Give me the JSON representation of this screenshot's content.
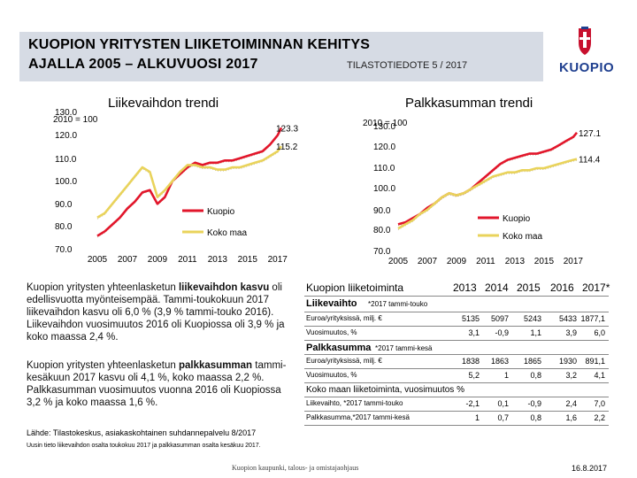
{
  "header": {
    "title_line1": "KUOPION YRITYSTEN LIIKETOIMINNAN KEHITYS",
    "title_line2": "AJALLA 2005 – ALKUVUOSI 2017",
    "subtitle": "TILASTOTIEDOTE 5 / 2017",
    "logo_text": "KUOPIO"
  },
  "charts": [
    {
      "title": "Liikevaihdon trendi",
      "index_label": "2010 = 100",
      "y_ticks": [
        "130.0",
        "120.0",
        "110.0",
        "100.0",
        "90.0",
        "80.0",
        "70.0"
      ],
      "x_ticks": [
        "2005",
        "2007",
        "2009",
        "2011",
        "2013",
        "2015",
        "2017"
      ],
      "end_labels": [
        "123.3",
        "115.2"
      ],
      "legend": [
        "Kuopio",
        "Koko maa"
      ]
    },
    {
      "title": "Palkkasumman trendi",
      "index_label": "2010 = 100",
      "y_ticks": [
        "130.0",
        "120.0",
        "110.0",
        "100.0",
        "90.0",
        "80.0",
        "70.0"
      ],
      "x_ticks": [
        "2005",
        "2007",
        "2009",
        "2011",
        "2013",
        "2015",
        "2017"
      ],
      "end_labels": [
        "127.1",
        "114.4"
      ],
      "legend": [
        "Kuopio",
        "Koko maa"
      ]
    }
  ],
  "chart_data": [
    {
      "type": "line",
      "title": "Liikevaihdon trendi",
      "ylabel": "2010 = 100",
      "ylim": [
        70,
        130
      ],
      "xlim": [
        2005,
        2017.25
      ],
      "series": [
        {
          "name": "Kuopio",
          "color": "#e2162b",
          "x": [
            2005,
            2005.5,
            2006,
            2006.5,
            2007,
            2007.5,
            2008,
            2008.5,
            2009,
            2009.5,
            2010,
            2010.5,
            2011,
            2011.5,
            2012,
            2012.5,
            2013,
            2013.5,
            2014,
            2014.5,
            2015,
            2015.5,
            2016,
            2016.5,
            2017,
            2017.25
          ],
          "y": [
            76,
            78,
            81,
            84,
            88,
            91,
            95,
            96,
            90,
            93,
            100,
            103,
            106,
            108,
            107,
            108,
            108,
            109,
            109,
            110,
            111,
            112,
            113,
            116,
            120,
            123.3
          ]
        },
        {
          "name": "Koko maa",
          "color": "#e9d35b",
          "x": [
            2005,
            2005.5,
            2006,
            2006.5,
            2007,
            2007.5,
            2008,
            2008.5,
            2009,
            2009.5,
            2010,
            2010.5,
            2011,
            2011.5,
            2012,
            2012.5,
            2013,
            2013.5,
            2014,
            2014.5,
            2015,
            2015.5,
            2016,
            2016.5,
            2017,
            2017.25
          ],
          "y": [
            84,
            86,
            90,
            94,
            98,
            102,
            106,
            104,
            93,
            96,
            100,
            104,
            107,
            107,
            106,
            106,
            105,
            105,
            106,
            106,
            107,
            108,
            109,
            111,
            113,
            115.2
          ]
        }
      ]
    },
    {
      "type": "line",
      "title": "Palkkasumman trendi",
      "ylabel": "2010 = 100",
      "ylim": [
        70,
        130
      ],
      "xlim": [
        2005,
        2017.25
      ],
      "series": [
        {
          "name": "Kuopio",
          "color": "#e2162b",
          "x": [
            2005,
            2005.5,
            2006,
            2006.5,
            2007,
            2007.5,
            2008,
            2008.5,
            2009,
            2009.5,
            2010,
            2010.5,
            2011,
            2011.5,
            2012,
            2012.5,
            2013,
            2013.5,
            2014,
            2014.5,
            2015,
            2015.5,
            2016,
            2016.5,
            2017,
            2017.25
          ],
          "y": [
            83,
            84,
            86,
            88,
            91,
            93,
            96,
            98,
            97,
            98,
            100,
            103,
            106,
            109,
            112,
            114,
            115,
            116,
            117,
            117,
            118,
            119,
            121,
            123,
            125,
            127.1
          ]
        },
        {
          "name": "Koko maa",
          "color": "#e9d35b",
          "x": [
            2005,
            2005.5,
            2006,
            2006.5,
            2007,
            2007.5,
            2008,
            2008.5,
            2009,
            2009.5,
            2010,
            2010.5,
            2011,
            2011.5,
            2012,
            2012.5,
            2013,
            2013.5,
            2014,
            2014.5,
            2015,
            2015.5,
            2016,
            2016.5,
            2017,
            2017.25
          ],
          "y": [
            81,
            83,
            85,
            88,
            90,
            93,
            96,
            98,
            97,
            98,
            100,
            102,
            104,
            106,
            107,
            108,
            108,
            109,
            109,
            110,
            110,
            111,
            112,
            113,
            114,
            114.4
          ]
        }
      ]
    }
  ],
  "paragraphs": {
    "p1_a": "Kuopion yritysten yhteenlasketun ",
    "p1_bold": "liikevaihdon kasvu",
    "p1_b": " oli edellisvuotta myönteisempää. Tammi-toukokuun 2017 liikevaihdon kasvu oli 6,0 % (3,9 % tammi-touko 2016). Liikevaihdon vuosimuutos 2016 oli Kuopiossa oli 3,9 % ja koko maassa 2,4 %.",
    "p2_a": "Kuopion yritysten yhteenlasketun ",
    "p2_bold": "palkkasumman",
    "p2_b": " tammi-kesäkuun 2017 kasvu oli 4,1 %, koko maassa 2,2 %. Palkkasumman vuosimuutos vuonna 2016 oli Kuopiossa 3,2 % ja koko maassa 1,6 %."
  },
  "table": {
    "header": {
      "label": "Kuopion liiketoiminta",
      "years": [
        "2013",
        "2014",
        "2015",
        "2016",
        "2017*"
      ]
    },
    "section1": {
      "bold": "Liikevaihto",
      "note": " *2017 tammi-touko"
    },
    "rows1": [
      {
        "label": "Euroa/yrityksissä, milj. €",
        "values": [
          "5135",
          "5097",
          "5243",
          "5433",
          "1877,1"
        ]
      },
      {
        "label": "Vuosimuutos, %",
        "values": [
          "3,1",
          "-0,9",
          "1,1",
          "3,9",
          "6,0"
        ]
      }
    ],
    "section2": {
      "bold": "Palkkasumma",
      "note": " *2017 tammi-kesä"
    },
    "rows2": [
      {
        "label": "Euroa/yrityksissä, milj. €",
        "values": [
          "1838",
          "1863",
          "1865",
          "1930",
          "891,1"
        ]
      },
      {
        "label": "Vuosimuutos, %",
        "values": [
          "5,2",
          "1",
          "0,8",
          "3,2",
          "4,1"
        ]
      }
    ],
    "section3": {
      "label": "Koko maan liiketoiminta, vuosimuutos %"
    },
    "rows3": [
      {
        "label": "Liikevaihto, *2017 tammi-touko",
        "values": [
          "-2,1",
          "0,1",
          "-0,9",
          "2,4",
          "7,0"
        ]
      },
      {
        "label": "Palkkasumma,*2017 tammi-kesä",
        "values": [
          "1",
          "0,7",
          "0,8",
          "1,6",
          "2,2"
        ]
      }
    ]
  },
  "footer": {
    "source1": "Lähde: Tilastokeskus, asiakaskohtainen suhdannepalvelu 8/2017",
    "source2": "Uusin tieto liikevaihdon osalta toukokuu 2017 ja palkkasumman osalta kesäkuu 2017.",
    "center": "Kuopion kaupunki, talous- ja omistajaohjaus",
    "date": "16.8.2017"
  }
}
